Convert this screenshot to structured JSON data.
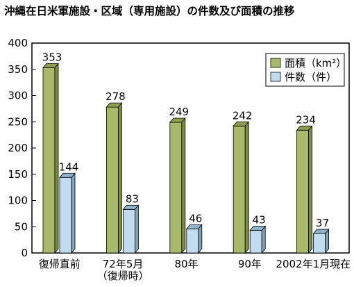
{
  "chart_data": {
    "type": "bar",
    "title": "沖縄在日米軍施設・区域（専用施設）の件数及び面積の推移",
    "categories": [
      {
        "line1": "復帰直前",
        "line2": ""
      },
      {
        "line1": "72年5月",
        "line2": "（復帰時）"
      },
      {
        "line1": "80年",
        "line2": ""
      },
      {
        "line1": "90年",
        "line2": ""
      },
      {
        "line1": "2002年1月現在",
        "line2": ""
      }
    ],
    "series": [
      {
        "name": "面積（km²）",
        "values": [
          353,
          278,
          249,
          242,
          234
        ],
        "color": "#a9b96a",
        "top_color": "#8f9d4c",
        "side_color": "#7e8c3f"
      },
      {
        "name": "件数（件）",
        "values": [
          144,
          83,
          46,
          43,
          37
        ],
        "color": "#c2dcef",
        "top_color": "#8fb3cc",
        "side_color": "#7fa3bd"
      }
    ],
    "ylim": [
      0,
      400
    ],
    "yticks": [
      "0",
      "50",
      "100",
      "150",
      "200",
      "250",
      "300",
      "350",
      "400"
    ],
    "legend_position": "top-right",
    "grid": false
  }
}
